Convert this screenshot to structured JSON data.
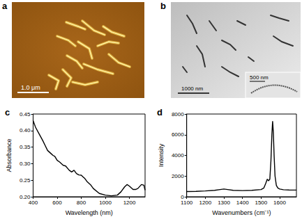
{
  "panels": [
    {
      "label": "a",
      "scale_bar": "1.0 μm"
    },
    {
      "label": "b",
      "scale_bar": "1000 nm",
      "inset_scale_bar": "500 nm"
    }
  ],
  "chart_data": [
    {
      "type": "line",
      "title": "c",
      "x_label": "Wavelength (nm)",
      "y_label": "Absorbance",
      "x": [
        400,
        420,
        450,
        480,
        500,
        520,
        550,
        565,
        580,
        600,
        620,
        650,
        670,
        700,
        720,
        740,
        760,
        780,
        800,
        815,
        830,
        850,
        880,
        900,
        950,
        1000,
        1050,
        1100,
        1130,
        1160,
        1180,
        1200,
        1230,
        1250,
        1270,
        1300,
        1320,
        1330
      ],
      "values": [
        0.43,
        0.41,
        0.39,
        0.37,
        0.355,
        0.34,
        0.33,
        0.325,
        0.322,
        0.31,
        0.305,
        0.295,
        0.293,
        0.28,
        0.275,
        0.28,
        0.27,
        0.266,
        0.265,
        0.26,
        0.255,
        0.245,
        0.235,
        0.225,
        0.21,
        0.205,
        0.203,
        0.205,
        0.215,
        0.23,
        0.237,
        0.232,
        0.222,
        0.222,
        0.225,
        0.237,
        0.235,
        0.22
      ],
      "color": "#000000",
      "xlim": [
        400,
        1330
      ],
      "xticks": [
        400,
        600,
        800,
        1000,
        1200
      ],
      "ylim": [
        0.2,
        0.45
      ],
      "yticks": [
        {
          "value": 0.2,
          "label": "0.20"
        },
        0.25,
        {
          "value": 0.3,
          "label": "0.30"
        },
        0.35,
        {
          "value": 0.4,
          "label": "0.40"
        },
        0.45
      ],
      "grid": false
    },
    {
      "type": "line",
      "title": "d",
      "x_label": "Wavenumbers (cm⁻¹)",
      "y_label": "Intensity",
      "x": [
        1100,
        1150,
        1200,
        1250,
        1280,
        1300,
        1320,
        1350,
        1400,
        1450,
        1500,
        1515,
        1525,
        1533,
        1540,
        1547,
        1553,
        1558,
        1562,
        1566,
        1570,
        1575,
        1582,
        1590,
        1600,
        1620,
        1650,
        1690
      ],
      "values": [
        500,
        520,
        560,
        620,
        700,
        750,
        700,
        620,
        600,
        620,
        700,
        850,
        1300,
        1700,
        1550,
        1700,
        3500,
        6000,
        7300,
        6200,
        4000,
        2000,
        1100,
        850,
        750,
        680,
        660,
        650
      ],
      "color": "#000000",
      "xlim": [
        1100,
        1690
      ],
      "xticks": [
        1100,
        1200,
        1300,
        1400,
        1500,
        1600
      ],
      "ylim": [
        0,
        8000
      ],
      "yticks": [
        0,
        2000,
        4000,
        6000,
        8000
      ],
      "grid": false
    }
  ]
}
